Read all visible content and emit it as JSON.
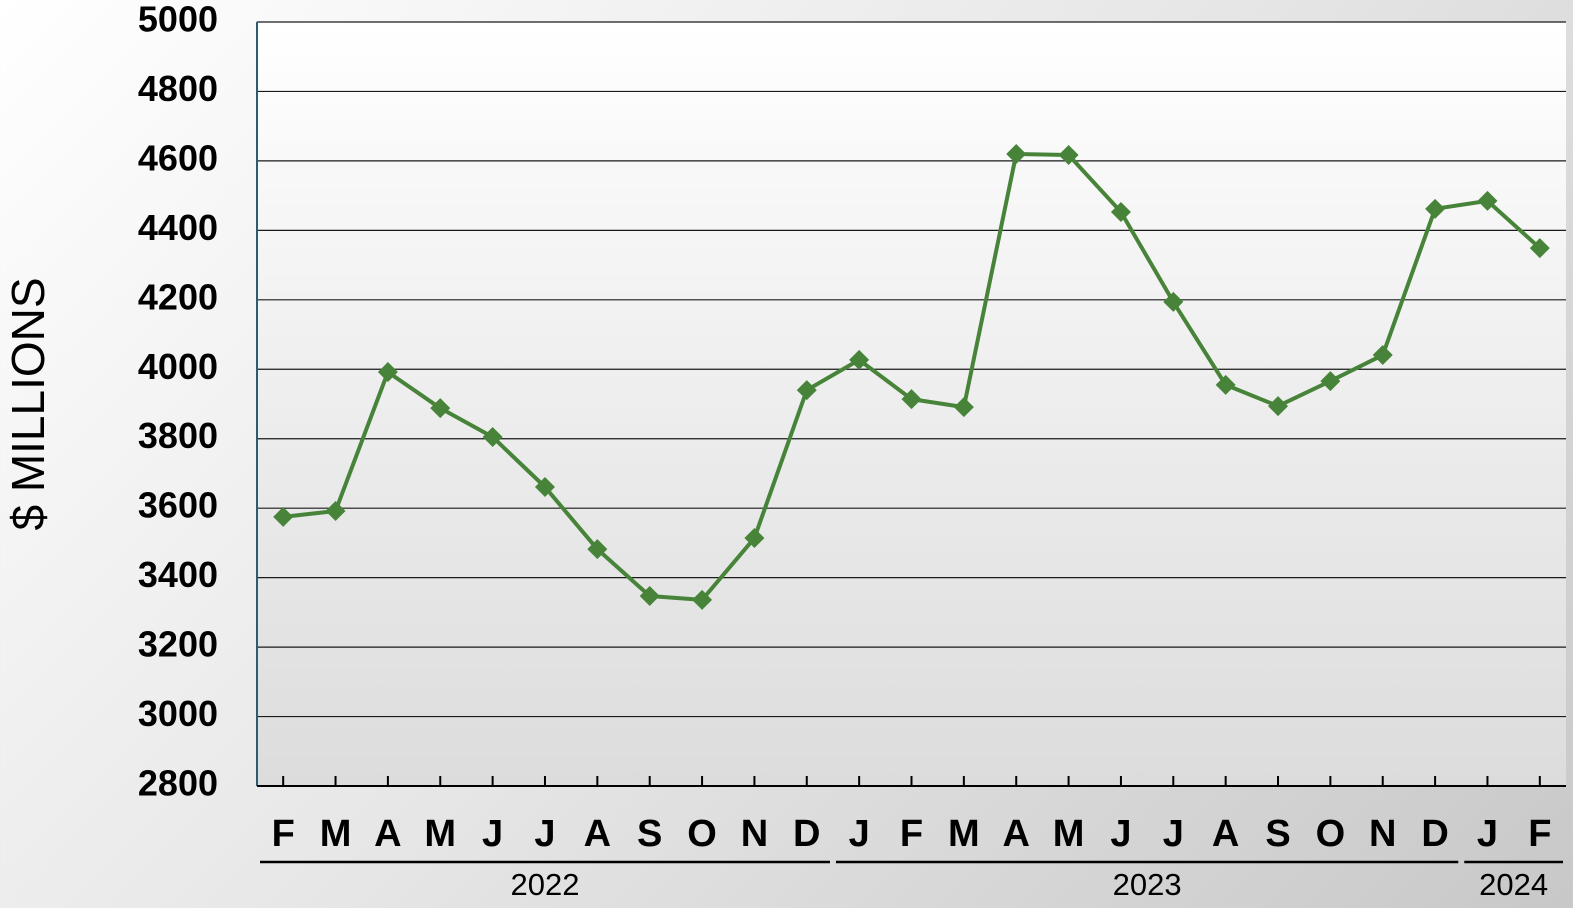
{
  "chart_data": {
    "type": "line",
    "y_label": "$ MILLIONS",
    "categories": [
      "F",
      "M",
      "A",
      "M",
      "J",
      "J",
      "A",
      "S",
      "O",
      "N",
      "D",
      "J",
      "F",
      "M",
      "A",
      "M",
      "J",
      "J",
      "A",
      "S",
      "O",
      "N",
      "D",
      "J",
      "F"
    ],
    "year_groups": [
      {
        "label": "2022",
        "count": 11
      },
      {
        "label": "2023",
        "count": 12
      },
      {
        "label": "2024",
        "count": 2
      }
    ],
    "series": [
      {
        "name": "$ MILLIONS",
        "color": "#47843a",
        "values": [
          3575,
          3592,
          3992,
          3888,
          3805,
          3661,
          3482,
          3347,
          3336,
          3514,
          3940,
          4027,
          3914,
          3891,
          4620,
          4617,
          4453,
          4194,
          3955,
          3894,
          3966,
          4041,
          4462,
          4485,
          4349
        ]
      }
    ],
    "ylim": [
      2800,
      5000
    ],
    "yticks": [
      2800,
      3000,
      3200,
      3400,
      3600,
      3800,
      4000,
      4200,
      4400,
      4600,
      4800,
      5000
    ],
    "grid": true
  }
}
